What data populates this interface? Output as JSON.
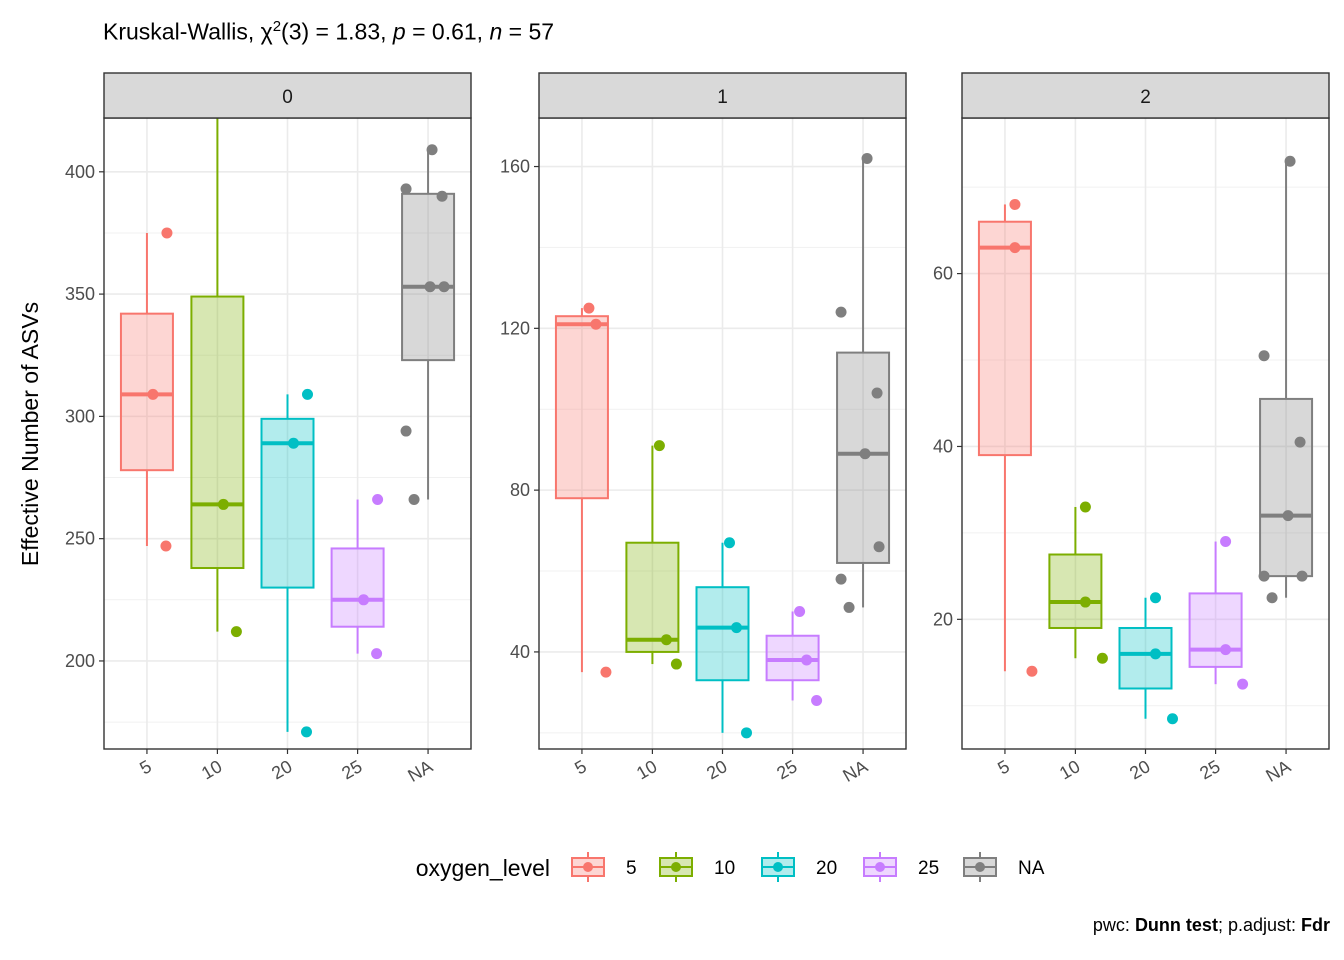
{
  "title": {
    "test": "Kruskal-Wallis,",
    "chi": "χ",
    "sup": "2",
    "df": "(3) = 1.83,",
    "p_label": "p",
    "p_value": " = 0.61,",
    "n_label": "n",
    "n_value": " = 57"
  },
  "caption": {
    "pwc_label": "pwc: ",
    "pwc_value": "Dunn test",
    "sep": "; p.adjust: ",
    "adjust_value": "Fdr"
  },
  "chart_data": {
    "type": "box",
    "ylabel": "Effective Number of ASVs",
    "xlabel": "",
    "categories": [
      "5",
      "10",
      "20",
      "25",
      "NA"
    ],
    "legend": {
      "title": "oxygen_level",
      "position": "bottom",
      "entries": [
        "5",
        "10",
        "20",
        "25",
        "NA"
      ]
    },
    "colors": {
      "5": "#F8766D",
      "10": "#7CAE00",
      "20": "#00BFC4",
      "25": "#C77CFF",
      "NA": "#7F7F7F"
    },
    "grid": true,
    "panels": [
      {
        "strip": "0",
        "ylim": [
          164,
          422
        ],
        "yticks": [
          200,
          250,
          300,
          350,
          400
        ],
        "boxes": [
          {
            "category": "5",
            "min": 247,
            "q1": 278,
            "median": 309,
            "q3": 342,
            "max": 375,
            "points": [
              375,
              309,
              247
            ]
          },
          {
            "category": "10",
            "min": 212,
            "q1": 238,
            "median": 264,
            "q3": 349,
            "max": 433,
            "points": [
              433,
              264,
              212
            ]
          },
          {
            "category": "20",
            "min": 171,
            "q1": 230,
            "median": 289,
            "q3": 299,
            "max": 309,
            "points": [
              309,
              289,
              171
            ]
          },
          {
            "category": "25",
            "min": 203,
            "q1": 214,
            "median": 225,
            "q3": 246,
            "max": 266,
            "points": [
              266,
              225,
              203
            ]
          },
          {
            "category": "NA",
            "min": 266,
            "q1": 323,
            "median": 353,
            "q3": 391,
            "max": 409,
            "points": [
              409,
              393,
              390,
              353,
              353,
              294,
              266
            ]
          }
        ]
      },
      {
        "strip": "1",
        "ylim": [
          16,
          172
        ],
        "yticks": [
          40,
          80,
          120,
          160
        ],
        "boxes": [
          {
            "category": "5",
            "min": 35,
            "q1": 78,
            "median": 121,
            "q3": 123,
            "max": 125,
            "points": [
              125,
              121,
              35
            ]
          },
          {
            "category": "10",
            "min": 37,
            "q1": 40,
            "median": 43,
            "q3": 67,
            "max": 91,
            "points": [
              91,
              43,
              37
            ]
          },
          {
            "category": "20",
            "min": 20,
            "q1": 33,
            "median": 46,
            "q3": 56,
            "max": 67,
            "points": [
              67,
              46,
              20
            ]
          },
          {
            "category": "25",
            "min": 28,
            "q1": 33,
            "median": 38,
            "q3": 44,
            "max": 50,
            "points": [
              50,
              38,
              28
            ]
          },
          {
            "category": "NA",
            "min": 51,
            "q1": 62,
            "median": 89,
            "q3": 114,
            "max": 162,
            "points": [
              162,
              124,
              104,
              89,
              66,
              58,
              51
            ]
          }
        ]
      },
      {
        "strip": "2",
        "ylim": [
          5,
          78
        ],
        "yticks": [
          20,
          40,
          60
        ],
        "boxes": [
          {
            "category": "5",
            "min": 14,
            "q1": 39,
            "median": 63,
            "q3": 66,
            "max": 68,
            "points": [
              68,
              63,
              14
            ]
          },
          {
            "category": "10",
            "min": 15.5,
            "q1": 19,
            "median": 22,
            "q3": 27.5,
            "max": 33,
            "points": [
              33,
              22,
              15.5
            ]
          },
          {
            "category": "20",
            "min": 8.5,
            "q1": 12,
            "median": 16,
            "q3": 19,
            "max": 22.5,
            "points": [
              22.5,
              16,
              8.5
            ]
          },
          {
            "category": "25",
            "min": 12.5,
            "q1": 14.5,
            "median": 16.5,
            "q3": 23,
            "max": 29,
            "points": [
              29,
              16.5,
              12.5
            ]
          },
          {
            "category": "NA",
            "min": 22.5,
            "q1": 25,
            "median": 32,
            "q3": 45.5,
            "max": 73,
            "points": [
              73,
              50.5,
              40.5,
              32,
              25,
              25,
              22.5
            ]
          }
        ]
      }
    ]
  }
}
